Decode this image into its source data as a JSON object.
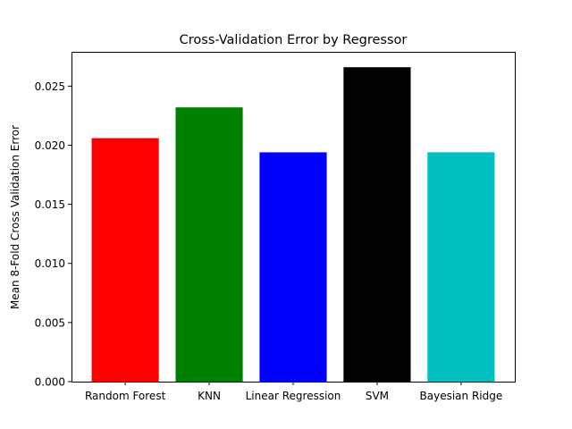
{
  "chart_data": {
    "type": "bar",
    "title": "Cross-Validation Error by Regressor",
    "xlabel": "",
    "ylabel": "Mean 8-Fold Cross Validation Error",
    "categories": [
      "Random Forest",
      "KNN",
      "Linear Regression",
      "SVM",
      "Bayesian Ridge"
    ],
    "values": [
      0.0206,
      0.0232,
      0.0194,
      0.0266,
      0.0194
    ],
    "colors": [
      "#ff0000",
      "#008000",
      "#0000ff",
      "#000000",
      "#00bfbf"
    ],
    "ylim": [
      0,
      0.0279
    ],
    "yticks": [
      0.0,
      0.005,
      0.01,
      0.015,
      0.02,
      0.025
    ],
    "ytick_labels": [
      "0.000",
      "0.005",
      "0.010",
      "0.015",
      "0.020",
      "0.025"
    ],
    "grid": false,
    "legend": "none"
  }
}
